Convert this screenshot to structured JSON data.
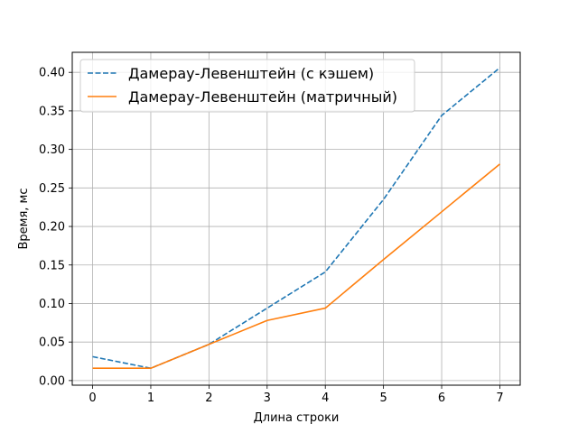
{
  "chart_data": {
    "type": "line",
    "title": "",
    "xlabel": "Длина строки",
    "ylabel": "Время, мс",
    "x": [
      0,
      1,
      2,
      3,
      4,
      5,
      6,
      7
    ],
    "xlim": [
      -0.35,
      7.35
    ],
    "ylim": [
      -0.006,
      0.426
    ],
    "xticks": [
      0,
      1,
      2,
      3,
      4,
      5,
      6,
      7
    ],
    "xtick_labels": [
      "0",
      "1",
      "2",
      "3",
      "4",
      "5",
      "6",
      "7"
    ],
    "yticks": [
      0.0,
      0.05,
      0.1,
      0.15,
      0.2,
      0.25,
      0.3,
      0.35,
      0.4
    ],
    "ytick_labels": [
      "0.00",
      "0.05",
      "0.10",
      "0.15",
      "0.20",
      "0.25",
      "0.30",
      "0.35",
      "0.40"
    ],
    "grid": true,
    "legend_position": "top-left",
    "series": [
      {
        "name": "Дамерау-Левенштейн (с кэшем)",
        "values": [
          0.031,
          0.016,
          0.047,
          0.094,
          0.141,
          0.235,
          0.344,
          0.406
        ],
        "color": "#1f77b4",
        "line_style": "dashed"
      },
      {
        "name": "Дамерау-Левенштейн (матричный)",
        "values": [
          0.016,
          0.016,
          0.047,
          0.078,
          0.094,
          0.157,
          0.219,
          0.281
        ],
        "color": "#ff7f0e",
        "line_style": "solid"
      }
    ]
  }
}
